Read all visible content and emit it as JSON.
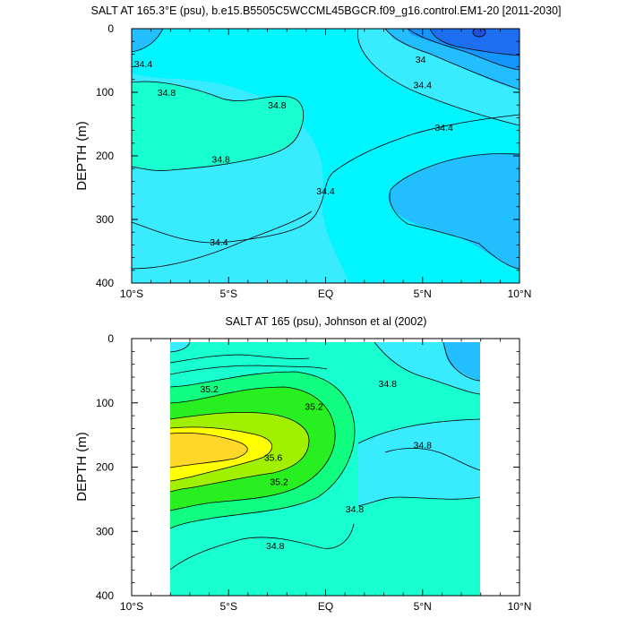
{
  "chart_data": [
    {
      "type": "contour",
      "title": "SALT AT 165.3°E (psu), b.e15.B5505C5WCCML45BGCR.f09_g16.control.EM1-20 [2011-2030]",
      "ylabel": "DEPTH (m)",
      "xlabel": "",
      "x_ticks": [
        "10°S",
        "5°S",
        "EQ",
        "5°N",
        "10°N"
      ],
      "x_tick_values": [
        -10,
        -5,
        0,
        5,
        10
      ],
      "y_ticks": [
        "0",
        "100",
        "200",
        "300",
        "400"
      ],
      "y_tick_values": [
        0,
        100,
        200,
        300,
        400
      ],
      "xlim": [
        -10,
        10
      ],
      "ylim": [
        400,
        0
      ],
      "data_extent": {
        "x": [
          -10,
          10
        ],
        "depth": [
          5,
          350
        ]
      },
      "contour_labels": [
        {
          "text": "34.4",
          "x": -9.4,
          "depth": 55
        },
        {
          "text": "34.8",
          "x": -8.2,
          "depth": 100
        },
        {
          "text": "34.8",
          "x": -2.5,
          "depth": 120
        },
        {
          "text": "34.8",
          "x": -5.4,
          "depth": 205
        },
        {
          "text": "34.4",
          "x": 0.0,
          "depth": 255
        },
        {
          "text": "34.4",
          "x": -5.5,
          "depth": 335
        },
        {
          "text": "34",
          "x": 4.9,
          "depth": 48
        },
        {
          "text": "34.4",
          "x": 5.0,
          "depth": 88
        },
        {
          "text": "34.4",
          "x": 6.1,
          "depth": 155
        }
      ],
      "regions": [
        {
          "value": 34.6,
          "color": "#38EBFF"
        },
        {
          "value": 34.9,
          "color": "#18FFD0"
        },
        {
          "value": 34.2,
          "color": "#22BEFF"
        },
        {
          "value": 33.9,
          "color": "#1496FF"
        },
        {
          "value": 33.7,
          "color": "#2060E8"
        }
      ]
    },
    {
      "type": "contour",
      "title": "SALT AT 165 (psu), Johnson et al (2002)",
      "ylabel": "DEPTH (m)",
      "xlabel": "",
      "x_ticks": [
        "10°S",
        "5°S",
        "EQ",
        "5°N",
        "10°N"
      ],
      "x_tick_values": [
        -10,
        -5,
        0,
        5,
        10
      ],
      "y_ticks": [
        "0",
        "100",
        "200",
        "300",
        "400"
      ],
      "y_tick_values": [
        0,
        100,
        200,
        300,
        400
      ],
      "xlim": [
        -10,
        10
      ],
      "ylim": [
        400,
        0
      ],
      "data_extent": {
        "x": [
          -8,
          8
        ],
        "depth": [
          5,
          400
        ]
      },
      "contour_labels": [
        {
          "text": "35.2",
          "x": -6.0,
          "depth": 78
        },
        {
          "text": "35.2",
          "x": -0.6,
          "depth": 105
        },
        {
          "text": "34.8",
          "x": 3.2,
          "depth": 70
        },
        {
          "text": "35.6",
          "x": -2.7,
          "depth": 185
        },
        {
          "text": "35.2",
          "x": -2.4,
          "depth": 222
        },
        {
          "text": "34.8",
          "x": 5.0,
          "depth": 165
        },
        {
          "text": "34.8",
          "x": 1.5,
          "depth": 265
        },
        {
          "text": "34.8",
          "x": -2.6,
          "depth": 322
        }
      ],
      "regions": [
        {
          "value": 34.9,
          "color": "#18FFD0"
        },
        {
          "value": 35.1,
          "color": "#10FF80"
        },
        {
          "value": 35.3,
          "color": "#28F020"
        },
        {
          "value": 35.5,
          "color": "#A0F000"
        },
        {
          "value": 35.6,
          "color": "#FFFF00"
        },
        {
          "value": 35.7,
          "color": "#FFD728"
        },
        {
          "value": 34.6,
          "color": "#38EBFF"
        },
        {
          "value": 34.2,
          "color": "#22BEFF"
        }
      ]
    }
  ]
}
